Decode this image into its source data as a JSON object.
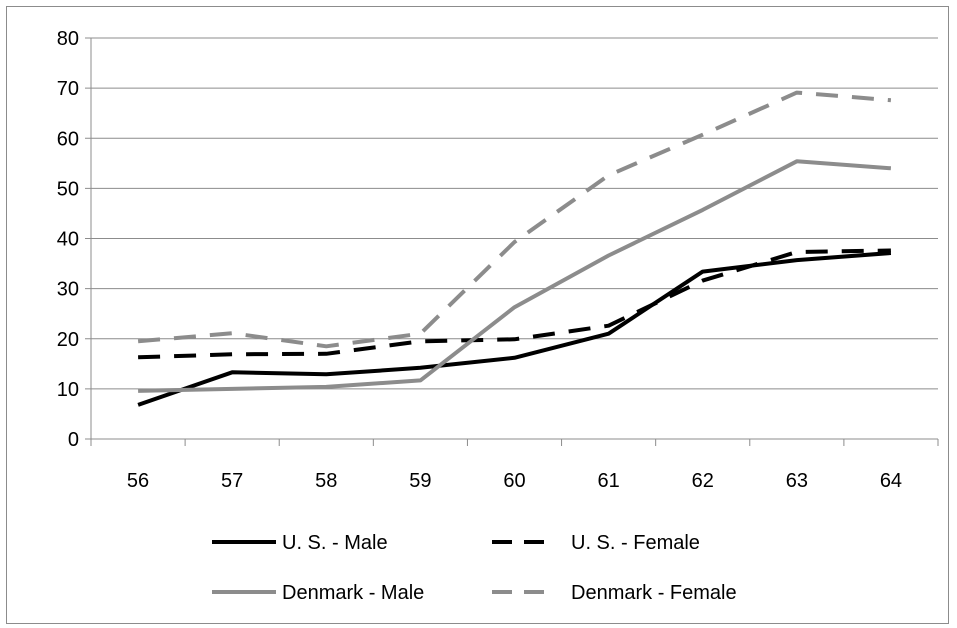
{
  "chart_data": {
    "type": "line",
    "title": "",
    "xlabel": "",
    "ylabel": "",
    "categories": [
      "56",
      "57",
      "58",
      "59",
      "60",
      "61",
      "62",
      "63",
      "64"
    ],
    "ylim": [
      0,
      80
    ],
    "yticks": [
      0,
      10,
      20,
      30,
      40,
      50,
      60,
      70,
      80
    ],
    "grid": "horizontal",
    "legend_position": "bottom",
    "series": [
      {
        "name": "U. S. - Male",
        "values": [
          6.8,
          13.3,
          12.9,
          14.2,
          16.2,
          21.0,
          33.4,
          35.7,
          37.1
        ],
        "color": "#000000",
        "dash": "solid"
      },
      {
        "name": "U. S. - Female",
        "values": [
          16.3,
          16.9,
          17.0,
          19.5,
          19.9,
          22.6,
          31.6,
          37.3,
          37.6
        ],
        "color": "#000000",
        "dash": "dashed"
      },
      {
        "name": "Denmark - Male",
        "values": [
          9.6,
          10.0,
          10.4,
          11.7,
          26.3,
          36.6,
          45.7,
          55.4,
          54.0
        ],
        "color": "#8c8c8c",
        "dash": "solid"
      },
      {
        "name": "Denmark - Female",
        "values": [
          19.5,
          21.1,
          18.5,
          21.0,
          39.3,
          52.6,
          60.7,
          69.1,
          67.6
        ],
        "color": "#8c8c8c",
        "dash": "dashed"
      }
    ]
  }
}
